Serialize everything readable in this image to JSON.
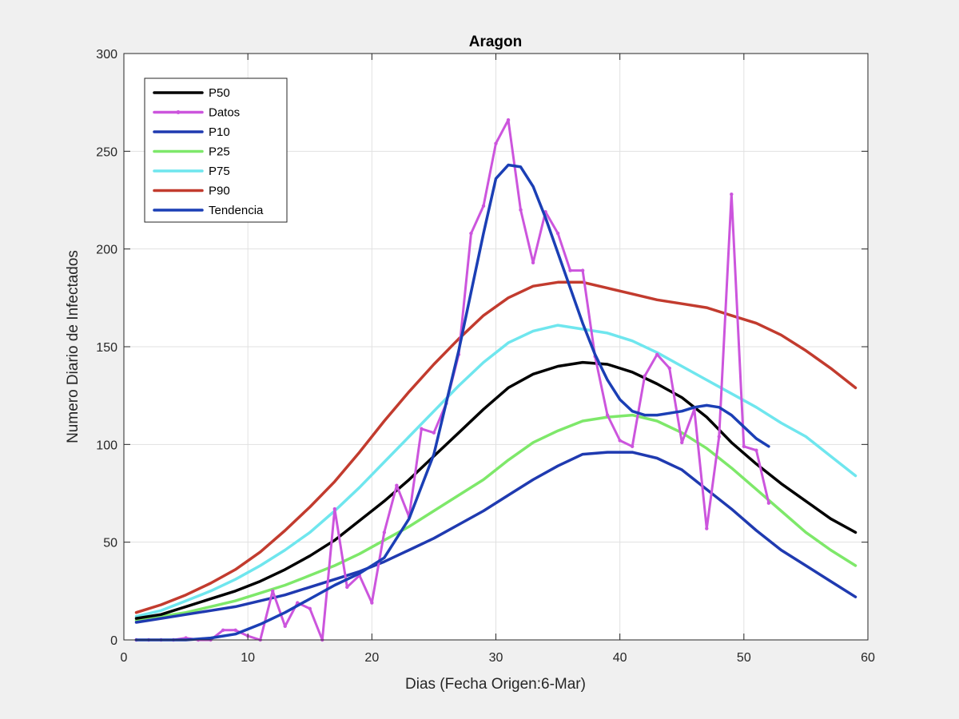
{
  "chart_data": {
    "type": "line",
    "title": "Aragon",
    "xlabel": "Dias (Fecha Origen:6-Mar)",
    "ylabel": "Numero Diario de Infectados",
    "xlim": [
      0,
      60
    ],
    "ylim": [
      0,
      300
    ],
    "xticks": [
      0,
      10,
      20,
      30,
      40,
      50,
      60
    ],
    "yticks": [
      0,
      50,
      100,
      150,
      200,
      250,
      300
    ],
    "grid": true,
    "legend_position": "top-left",
    "series": [
      {
        "name": "P50",
        "color": "#000000",
        "marker": false,
        "x": [
          1,
          3,
          5,
          7,
          9,
          11,
          13,
          15,
          17,
          19,
          21,
          23,
          25,
          27,
          29,
          31,
          33,
          35,
          37,
          39,
          41,
          43,
          45,
          47,
          49,
          51,
          53,
          55,
          57,
          59
        ],
        "y": [
          11,
          13,
          17,
          21,
          25,
          30,
          36,
          43,
          51,
          61,
          71,
          82,
          94,
          106,
          118,
          129,
          136,
          140,
          142,
          141,
          137,
          131,
          124,
          114,
          101,
          90,
          80,
          71,
          62,
          55
        ]
      },
      {
        "name": " Datos",
        "color": "#cc55dd",
        "marker": true,
        "x": [
          1,
          2,
          3,
          4,
          5,
          6,
          7,
          8,
          9,
          10,
          11,
          12,
          13,
          14,
          15,
          16,
          17,
          18,
          19,
          20,
          21,
          22,
          23,
          24,
          25,
          26,
          27,
          28,
          29,
          30,
          31,
          32,
          33,
          34,
          35,
          36,
          37,
          38,
          39,
          40,
          41,
          42,
          43,
          44,
          45,
          46,
          47,
          48,
          49,
          50,
          51,
          52
        ],
        "y": [
          0,
          0,
          0,
          0,
          1,
          0,
          0,
          5,
          5,
          2,
          0,
          25,
          7,
          19,
          16,
          0,
          67,
          27,
          33,
          19,
          55,
          79,
          63,
          108,
          106,
          121,
          146,
          208,
          222,
          254,
          266,
          220,
          193,
          219,
          208,
          189,
          189,
          145,
          115,
          102,
          99,
          135,
          146,
          139,
          101,
          118,
          57,
          104,
          228,
          99,
          97,
          70
        ]
      },
      {
        "name": "P10",
        "color": "#1f3ab0",
        "marker": false,
        "x": [
          1,
          3,
          5,
          7,
          9,
          11,
          13,
          15,
          17,
          19,
          21,
          23,
          25,
          27,
          29,
          31,
          33,
          35,
          37,
          39,
          41,
          43,
          45,
          47,
          49,
          51,
          53,
          55,
          57,
          59
        ],
        "y": [
          9,
          11,
          13,
          15,
          17,
          20,
          23,
          27,
          31,
          35,
          40,
          46,
          52,
          59,
          66,
          74,
          82,
          89,
          95,
          96,
          96,
          93,
          87,
          77,
          67,
          56,
          46,
          38,
          30,
          22
        ]
      },
      {
        "name": "P25",
        "color": "#7ee86a",
        "marker": false,
        "x": [
          1,
          3,
          5,
          7,
          9,
          11,
          13,
          15,
          17,
          19,
          21,
          23,
          25,
          27,
          29,
          31,
          33,
          35,
          37,
          39,
          41,
          43,
          45,
          47,
          49,
          51,
          53,
          55,
          57,
          59
        ],
        "y": [
          10,
          12,
          14,
          17,
          20,
          24,
          28,
          33,
          38,
          44,
          51,
          58,
          66,
          74,
          82,
          92,
          101,
          107,
          112,
          114,
          115,
          112,
          106,
          98,
          88,
          77,
          66,
          55,
          46,
          38
        ]
      },
      {
        "name": "P75",
        "color": "#6fe6ee",
        "marker": false,
        "x": [
          1,
          3,
          5,
          7,
          9,
          11,
          13,
          15,
          17,
          19,
          21,
          23,
          25,
          27,
          29,
          31,
          33,
          35,
          37,
          39,
          41,
          43,
          45,
          47,
          49,
          51,
          53,
          55,
          57,
          59
        ],
        "y": [
          12,
          15,
          20,
          25,
          31,
          38,
          46,
          55,
          66,
          78,
          91,
          104,
          117,
          130,
          142,
          152,
          158,
          161,
          159,
          157,
          153,
          147,
          140,
          133,
          126,
          119,
          111,
          104,
          94,
          84
        ]
      },
      {
        "name": "P90",
        "color": "#c23b2e",
        "marker": false,
        "x": [
          1,
          3,
          5,
          7,
          9,
          11,
          13,
          15,
          17,
          19,
          21,
          23,
          25,
          27,
          29,
          31,
          33,
          35,
          37,
          39,
          41,
          43,
          45,
          47,
          49,
          51,
          53,
          55,
          57,
          59
        ],
        "y": [
          14,
          18,
          23,
          29,
          36,
          45,
          56,
          68,
          81,
          96,
          112,
          127,
          141,
          154,
          166,
          175,
          181,
          183,
          183,
          180,
          177,
          174,
          172,
          170,
          166,
          162,
          156,
          148,
          139,
          129
        ]
      },
      {
        "name": "Tendencia",
        "color": "#1b3fb5",
        "marker": false,
        "x": [
          1,
          3,
          5,
          7,
          9,
          11,
          13,
          15,
          17,
          19,
          21,
          23,
          25,
          27,
          28,
          29,
          30,
          31,
          32,
          33,
          34,
          35,
          36,
          37,
          38,
          39,
          40,
          41,
          42,
          43,
          44,
          45,
          46,
          47,
          48,
          49,
          50,
          51,
          52
        ],
        "y": [
          0,
          0,
          0,
          1,
          3,
          8,
          14,
          21,
          28,
          34,
          42,
          62,
          95,
          148,
          178,
          208,
          236,
          243,
          242,
          232,
          216,
          198,
          180,
          162,
          146,
          133,
          123,
          117,
          115,
          115,
          116,
          117,
          119,
          120,
          119,
          115,
          109,
          103,
          99
        ]
      }
    ]
  }
}
